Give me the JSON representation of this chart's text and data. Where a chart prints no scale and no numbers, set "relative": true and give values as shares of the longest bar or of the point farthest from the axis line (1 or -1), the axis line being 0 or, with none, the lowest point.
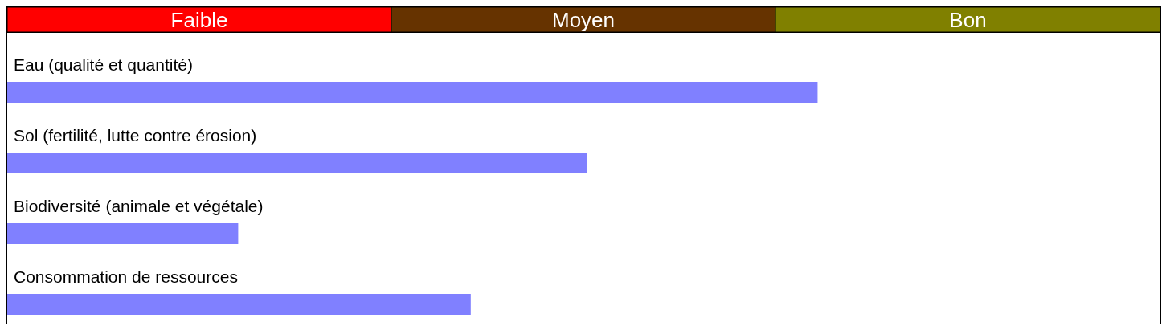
{
  "chart_data": {
    "type": "bar",
    "orientation": "horizontal",
    "relative": true,
    "categories": [
      "Eau (qualité et quantité)",
      "Sol (fertilité, lutte contre érosion)",
      "Biodiversité (animale et végétale)",
      "Consommation de ressources"
    ],
    "values": [
      1,
      0.715,
      0.285,
      0.572
    ],
    "color": "#8080ff",
    "bands": [
      {
        "axis": "x",
        "from": 0,
        "to": 0.474,
        "label": "Faible",
        "color": "#ff0000"
      },
      {
        "axis": "x",
        "from": 0.474,
        "to": 0.948,
        "label": "Moyen",
        "color": "#663300"
      },
      {
        "axis": "x",
        "from": 0.948,
        "to": 1.423,
        "label": "Bon",
        "color": "#808000"
      }
    ],
    "grid": false,
    "legend": false
  }
}
